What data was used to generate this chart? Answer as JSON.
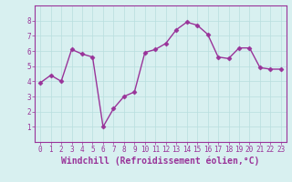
{
  "x": [
    0,
    1,
    2,
    3,
    4,
    5,
    6,
    7,
    8,
    9,
    10,
    11,
    12,
    13,
    14,
    15,
    16,
    17,
    18,
    19,
    20,
    21,
    22,
    23
  ],
  "y": [
    3.9,
    4.4,
    4.0,
    6.1,
    5.8,
    5.6,
    1.0,
    2.2,
    3.0,
    3.3,
    5.9,
    6.1,
    6.5,
    7.4,
    7.9,
    7.7,
    7.1,
    5.6,
    5.5,
    6.2,
    6.2,
    4.9,
    4.8,
    4.8
  ],
  "line_color": "#993399",
  "marker": "D",
  "marker_size": 2.5,
  "xlabel": "Windchill (Refroidissement éolien,°C)",
  "xlabel_fontsize": 7,
  "ylim": [
    0,
    9
  ],
  "xlim": [
    -0.5,
    23.5
  ],
  "yticks": [
    1,
    2,
    3,
    4,
    5,
    6,
    7,
    8
  ],
  "xticks": [
    0,
    1,
    2,
    3,
    4,
    5,
    6,
    7,
    8,
    9,
    10,
    11,
    12,
    13,
    14,
    15,
    16,
    17,
    18,
    19,
    20,
    21,
    22,
    23
  ],
  "tick_fontsize": 5.5,
  "background_color": "#d8f0f0",
  "grid_color": "#b8dede",
  "line_width": 1.0,
  "spine_color": "#993399"
}
